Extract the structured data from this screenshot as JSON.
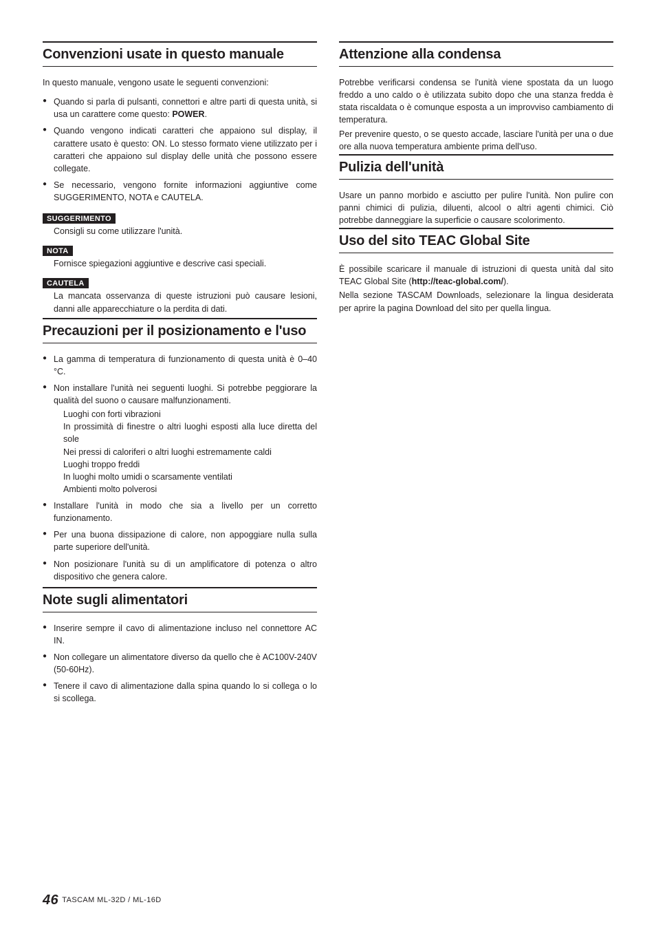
{
  "left": {
    "s1": {
      "title": "Convenzioni usate in questo manuale",
      "intro": "In questo manuale, vengono usate le seguenti convenzioni:",
      "b1a": "Quando si parla di pulsanti, connettori e altre parti di questa unità, si usa un carattere come questo: ",
      "b1b": "POWER",
      "b1c": ".",
      "b2": "Quando vengono indicati caratteri che appaiono sul display, il carattere usato è questo: ON. Lo stesso formato viene utilizzato per i caratteri che appaiono sul display delle unità che possono essere collegate.",
      "b3": "Se necessario, vengono fornite informazioni aggiuntive come SUGGERIMENTO, NOTA e CAUTELA.",
      "box1": {
        "label": "SUGGERIMENTO",
        "desc": "Consigli su come utilizzare l'unità."
      },
      "box2": {
        "label": "NOTA",
        "desc": "Fornisce spiegazioni aggiuntive e descrive casi speciali."
      },
      "box3": {
        "label": "CAUTELA",
        "desc": "La mancata osservanza di queste istruzioni può causare lesioni, danni alle apparecchiature o la perdita di dati."
      }
    },
    "s2": {
      "title": "Precauzioni per il posizionamento e l'uso",
      "b1": "La gamma di temperatura di funzionamento di questa unità è 0–40 °C.",
      "b2": "Non installare l'unità nei seguenti luoghi. Si potrebbe peggiorare la qualità del suono o causare malfunzionamenti.",
      "sub": {
        "a": "Luoghi con forti vibrazioni",
        "b": "In prossimità di finestre o altri luoghi esposti alla luce diretta del sole",
        "c": "Nei pressi di caloriferi o altri luoghi estremamente caldi",
        "d": "Luoghi troppo freddi",
        "e": "In luoghi molto umidi o scarsamente ventilati",
        "f": "Ambienti molto polverosi"
      },
      "b3": "Installare l'unità in modo che sia a livello per un corretto funzionamento.",
      "b4": "Per una buona dissipazione di calore, non appoggiare nulla sulla parte superiore dell'unità.",
      "b5": "Non posizionare l'unità su di un amplificatore di potenza o altro dispositivo che genera calore."
    },
    "s3": {
      "title": "Note sugli alimentatori",
      "b1": "Inserire sempre il cavo di alimentazione incluso nel connettore AC IN.",
      "b2": "Non collegare un alimentatore diverso da quello che è AC100V-240V (50-60Hz).",
      "b3": "Tenere il cavo di alimentazione dalla spina quando lo si collega o lo si scollega."
    }
  },
  "right": {
    "s1": {
      "title": "Attenzione alla condensa",
      "p1": "Potrebbe verificarsi condensa se l'unità viene spostata da un luogo freddo a uno caldo o è utilizzata subito dopo che una stanza fredda è stata riscaldata o è comunque esposta a un improvviso cambiamento di temperatura.",
      "p2": "Per prevenire questo, o se questo accade, lasciare l'unità per una o due ore alla nuova temperatura ambiente prima dell'uso."
    },
    "s2": {
      "title": "Pulizia dell'unità",
      "p1": "Usare un panno morbido e asciutto per pulire l'unità. Non pulire con panni chimici di pulizia, diluenti, alcool o altri agenti chimici. Ciò potrebbe danneggiare la superficie o causare scolorimento."
    },
    "s3": {
      "title": "Uso del sito TEAC Global Site",
      "p1a": "È possibile scaricare il manuale di istruzioni di questa unità dal sito TEAC Global Site (",
      "p1b": "http://teac-global.com/",
      "p1c": ").",
      "p2": "Nella sezione TASCAM Downloads, selezionare la lingua desiderata per aprire la pagina Download del sito per quella lingua."
    }
  },
  "footer": {
    "page": "46",
    "model": " TASCAM  ML-32D / ML-16D"
  }
}
